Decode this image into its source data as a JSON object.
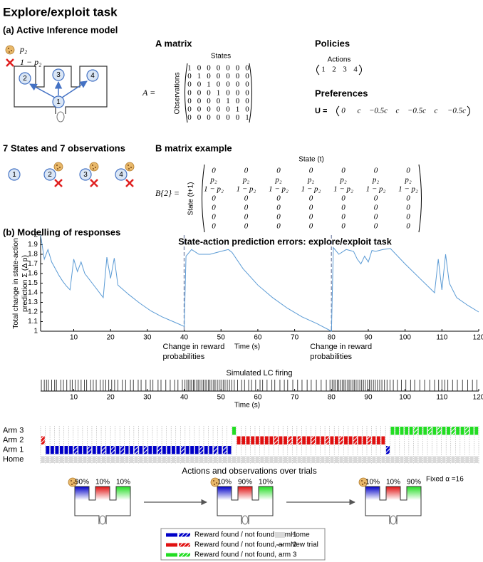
{
  "title": "Explore/exploit task",
  "panel_a": {
    "heading": "(a) Active Inference model",
    "outcomes": [
      "p₂",
      "1 − p₂"
    ],
    "maze_states": [
      "2",
      "3",
      "4",
      "1"
    ],
    "states_heading": "7 States and 7 observations",
    "state_icons": [
      "1",
      "2",
      "3",
      "4"
    ],
    "a_matrix": {
      "title": "A matrix",
      "column_label": "States",
      "row_label": "Observations",
      "lhs": "A =",
      "rows": [
        [
          1,
          0,
          0,
          0,
          0,
          0,
          0
        ],
        [
          0,
          1,
          0,
          0,
          0,
          0,
          0
        ],
        [
          0,
          0,
          1,
          0,
          0,
          0,
          0
        ],
        [
          0,
          0,
          0,
          1,
          0,
          0,
          0
        ],
        [
          0,
          0,
          0,
          0,
          1,
          0,
          0
        ],
        [
          0,
          0,
          0,
          0,
          0,
          1,
          0
        ],
        [
          0,
          0,
          0,
          0,
          0,
          0,
          1
        ]
      ]
    },
    "policies": {
      "title": "Policies",
      "column_label": "Actions",
      "actions": [
        1,
        2,
        3,
        4
      ]
    },
    "preferences": {
      "title": "Preferences",
      "lhs": "U =",
      "values": [
        "0",
        "c",
        "−0.5c",
        "c",
        "−0.5c",
        "c",
        "−0.5c"
      ]
    },
    "b_matrix": {
      "title": "B matrix example",
      "column_label": "State (t)",
      "row_label": "State (t+1)",
      "lhs": "B{2} =",
      "rows": [
        [
          0,
          0,
          0,
          0,
          0,
          0,
          0
        ],
        [
          "p₂",
          "p₂",
          "p₂",
          "p₂",
          "p₂",
          "p₂",
          "p₂"
        ],
        [
          "1 − p₂",
          "1 − p₂",
          "1 − p₂",
          "1 − p₂",
          "1 − p₂",
          "1 − p₂",
          "1 − p₂"
        ],
        [
          0,
          0,
          0,
          0,
          0,
          0,
          0
        ],
        [
          0,
          0,
          0,
          0,
          0,
          0,
          0
        ],
        [
          0,
          0,
          0,
          0,
          0,
          0,
          0
        ],
        [
          0,
          0,
          0,
          0,
          0,
          0,
          0
        ]
      ]
    }
  },
  "panel_b": {
    "heading": "(b) Modelling of responses"
  },
  "chart_data": [
    {
      "type": "line",
      "title": "State-action prediction errors: explore/exploit task",
      "x_label": "Time (s)",
      "y_label": [
        "Total change in state-action",
        "prediction Σ (Δ p)"
      ],
      "x": [
        1,
        2,
        3,
        4,
        5,
        6,
        7,
        8,
        9,
        10,
        11,
        12,
        13,
        15,
        18,
        19,
        20,
        21,
        22,
        25,
        28,
        31,
        34,
        37,
        40,
        40.5,
        42,
        44,
        47,
        50,
        52,
        53,
        56,
        60,
        64,
        68,
        72,
        76,
        80,
        80.5,
        82,
        84,
        86,
        87,
        88,
        89,
        90,
        91,
        92,
        94,
        96,
        100,
        104,
        108,
        109,
        110,
        111,
        112,
        114,
        117,
        120
      ],
      "values": [
        2.0,
        1.75,
        1.85,
        1.72,
        1.65,
        1.58,
        1.52,
        1.47,
        1.43,
        1.75,
        1.62,
        1.72,
        1.6,
        1.5,
        1.35,
        1.77,
        1.55,
        1.76,
        1.48,
        1.38,
        1.29,
        1.21,
        1.15,
        1.1,
        1.05,
        1.78,
        1.85,
        1.8,
        1.8,
        1.83,
        1.85,
        1.82,
        1.65,
        1.48,
        1.35,
        1.24,
        1.15,
        1.08,
        1.0,
        1.87,
        1.8,
        1.85,
        1.83,
        1.75,
        1.7,
        1.78,
        1.72,
        1.84,
        1.83,
        1.85,
        1.86,
        1.7,
        1.55,
        1.4,
        1.75,
        1.43,
        1.8,
        1.5,
        1.35,
        1.27,
        1.2
      ],
      "color": "#5b9bd5",
      "xlim": [
        1,
        120
      ],
      "xticks": [
        10,
        20,
        30,
        40,
        50,
        60,
        70,
        80,
        90,
        100,
        110,
        120
      ],
      "ylim": [
        1,
        2
      ],
      "yticks": [
        1,
        1.1,
        1.2,
        1.3,
        1.4,
        1.5,
        1.6,
        1.7,
        1.8,
        1.9,
        2
      ],
      "annotations": [
        {
          "x": 40,
          "text": [
            "Change in reward",
            "probabilities"
          ]
        },
        {
          "x": 80,
          "text": [
            "Change in reward",
            "probabilities"
          ]
        }
      ],
      "annotation_color": "#8c96b4"
    },
    {
      "type": "raster",
      "title": "Simulated LC firing",
      "x_label": "Time (s)",
      "color": "#444444",
      "spikes": [
        1.2,
        2.0,
        2.6,
        3.1,
        4.0,
        4.8,
        5.3,
        6.5,
        7.2,
        8.1,
        9.0,
        9.6,
        10.4,
        11.2,
        12.0,
        12.9,
        13.5,
        14.6,
        15.3,
        16.1,
        17.2,
        18.0,
        18.7,
        19.5,
        20.3,
        21.1,
        22.0,
        23.2,
        24.1,
        25.4,
        26.2,
        27.5,
        28.3,
        29.6,
        30.8,
        31.5,
        32.9,
        33.7,
        35.0,
        36.2,
        37.4,
        38.3,
        39.5,
        40.2,
        40.7,
        41.1,
        41.6,
        42.0,
        42.5,
        42.9,
        43.4,
        43.8,
        44.3,
        44.8,
        45.2,
        45.7,
        46.1,
        46.6,
        47.0,
        47.5,
        48.0,
        48.4,
        49.0,
        49.5,
        50.0,
        50.6,
        51.1,
        51.7,
        52.3,
        52.9,
        53.6,
        54.5,
        55.6,
        56.4,
        57.5,
        58.3,
        59.4,
        60.6,
        61.3,
        62.5,
        63.8,
        64.6,
        66.0,
        67.2,
        68.1,
        69.5,
        70.8,
        72.0,
        73.4,
        74.5,
        75.9,
        77.2,
        78.6,
        79.6,
        80.2,
        80.7,
        81.1,
        81.6,
        82.0,
        82.5,
        83.0,
        83.4,
        83.9,
        84.4,
        84.8,
        85.3,
        85.8,
        86.2,
        86.7,
        87.2,
        87.7,
        88.2,
        88.7,
        89.2,
        89.8,
        90.3,
        90.8,
        91.4,
        91.9,
        92.5,
        93.1,
        93.7,
        94.4,
        95.1,
        95.9,
        96.8,
        97.9,
        99.0,
        100.2,
        101.5,
        102.6,
        104.0,
        105.3,
        106.7,
        108.0,
        109.1,
        110.0,
        110.8,
        111.6,
        112.9,
        114.2,
        115.6,
        117.0,
        118.3,
        119.5
      ],
      "xlim": [
        1,
        120
      ],
      "xticks": [
        10,
        20,
        30,
        40,
        50,
        60,
        70,
        80,
        90,
        100,
        110,
        120
      ]
    },
    {
      "type": "trials",
      "title": "Actions and observations over trials",
      "row_labels": [
        "Arm 3",
        "Arm 2",
        "Arm 1",
        "Home"
      ],
      "arm": [
        2,
        1,
        1,
        1,
        1,
        1,
        1,
        1,
        1,
        1,
        1,
        1,
        1,
        1,
        1,
        1,
        1,
        1,
        1,
        1,
        1,
        1,
        1,
        1,
        1,
        1,
        1,
        1,
        1,
        1,
        1,
        1,
        1,
        1,
        1,
        1,
        1,
        1,
        1,
        1,
        1,
        3,
        2,
        2,
        2,
        2,
        2,
        2,
        2,
        2,
        2,
        2,
        2,
        2,
        2,
        2,
        2,
        2,
        2,
        2,
        2,
        2,
        2,
        2,
        2,
        2,
        2,
        2,
        2,
        2,
        2,
        2,
        2,
        2,
        1,
        3,
        3,
        3,
        3,
        3,
        3,
        3,
        3,
        3,
        3,
        3,
        3,
        3,
        3,
        3,
        3,
        3,
        3,
        3
      ],
      "reward": [
        0,
        1,
        1,
        1,
        1,
        1,
        1,
        0,
        1,
        1,
        0,
        1,
        1,
        0,
        1,
        0,
        1,
        0,
        1,
        1,
        0,
        1,
        0,
        1,
        1,
        0,
        1,
        1,
        1,
        1,
        0,
        1,
        1,
        1,
        0,
        1,
        1,
        0,
        1,
        0,
        1,
        1,
        1,
        1,
        1,
        1,
        1,
        1,
        1,
        1,
        0,
        1,
        1,
        0,
        1,
        0,
        1,
        1,
        0,
        1,
        1,
        0,
        1,
        1,
        0,
        1,
        1,
        0,
        1,
        1,
        0,
        1,
        1,
        1,
        0,
        1,
        1,
        1,
        1,
        1,
        0,
        1,
        1,
        0,
        1,
        0,
        1,
        1,
        0,
        1,
        1,
        0,
        1,
        1
      ],
      "series": [
        {
          "name": "Reward found / not found, arm 1",
          "color": "#0000c8"
        },
        {
          "name": "Reward found / not found, arm 2",
          "color": "#e01010"
        },
        {
          "name": "Reward found / not found, arm 3",
          "color": "#22dd22"
        }
      ],
      "home_label": "Home",
      "home_color": "#d9d9d9",
      "new_trial_label": "New trial",
      "note": "Fixed α =16",
      "conditions": [
        [
          "90%",
          "10%",
          "10%"
        ],
        [
          "10%",
          "90%",
          "10%"
        ],
        [
          "10%",
          "10%",
          "90%"
        ]
      ]
    }
  ]
}
